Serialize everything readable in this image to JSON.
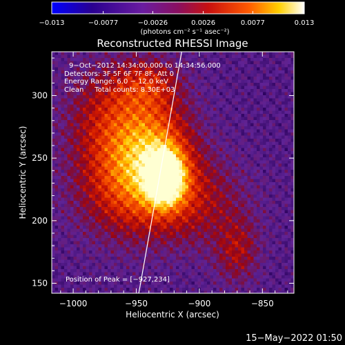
{
  "chart_data": {
    "type": "heatmap",
    "title": "Reconstructed RHESSI Image",
    "xlabel": "Heliocentric X (arcsec)",
    "ylabel": "Heliocentric Y (arcsec)",
    "xlim": [
      -1017,
      -825
    ],
    "ylim": [
      142,
      335
    ],
    "x_ticks": [
      -1000,
      -950,
      -900,
      -850
    ],
    "x_tick_labels": [
      "−1000",
      "−950",
      "−900",
      "−850"
    ],
    "y_ticks": [
      150,
      200,
      250,
      300
    ],
    "y_tick_labels": [
      "150",
      "200",
      "250",
      "300"
    ],
    "colorbar": {
      "range": [
        -0.013,
        0.013
      ],
      "ticks": [
        -0.013,
        -0.0077,
        -0.0026,
        0.0026,
        0.0077,
        0.013
      ],
      "tick_labels": [
        "−0.013",
        "−0.0077",
        "−0.0026",
        "0.0026",
        "0.0077",
        "0.013"
      ],
      "unit_label": "(photons cm⁻² s⁻¹ asec⁻²)",
      "colors": [
        "#0000ff",
        "#3a005a",
        "#7a1cb0",
        "#b01040",
        "#e02000",
        "#ff8c00",
        "#ffff40",
        "#ffffff"
      ]
    },
    "annotations": [
      "9−Oct−2012 14:34:00.000 to 14:34:56.000",
      "Detectors: 3F 5F 6F 7F 8F, Att 0",
      "Energy Range: 6.0 − 12.0 keV",
      "Clean     Total counts: 8.30E+03"
    ],
    "peak_label": "Position of Peak = [−927,234]",
    "peak": {
      "x": -927,
      "y": 234,
      "value": 0.013
    },
    "limb_line": [
      [
        -948,
        142
      ],
      [
        -914,
        335
      ]
    ],
    "sources": [
      {
        "x": -927,
        "y": 234,
        "sx": 10,
        "sy": 14,
        "amp": 1.0
      },
      {
        "x": -935,
        "y": 255,
        "sx": 22,
        "sy": 30,
        "amp": 0.55
      },
      {
        "x": -960,
        "y": 230,
        "sx": 28,
        "sy": 30,
        "amp": 0.45
      },
      {
        "x": -970,
        "y": 285,
        "sx": 25,
        "sy": 28,
        "amp": 0.35
      },
      {
        "x": -905,
        "y": 215,
        "sx": 30,
        "sy": 25,
        "amp": 0.3
      },
      {
        "x": -870,
        "y": 175,
        "sx": 12,
        "sy": 18,
        "amp": 0.3
      },
      {
        "x": -940,
        "y": 310,
        "sx": 18,
        "sy": 14,
        "amp": 0.3
      }
    ]
  },
  "footer": {
    "date": "15−May−2022 01:50"
  }
}
